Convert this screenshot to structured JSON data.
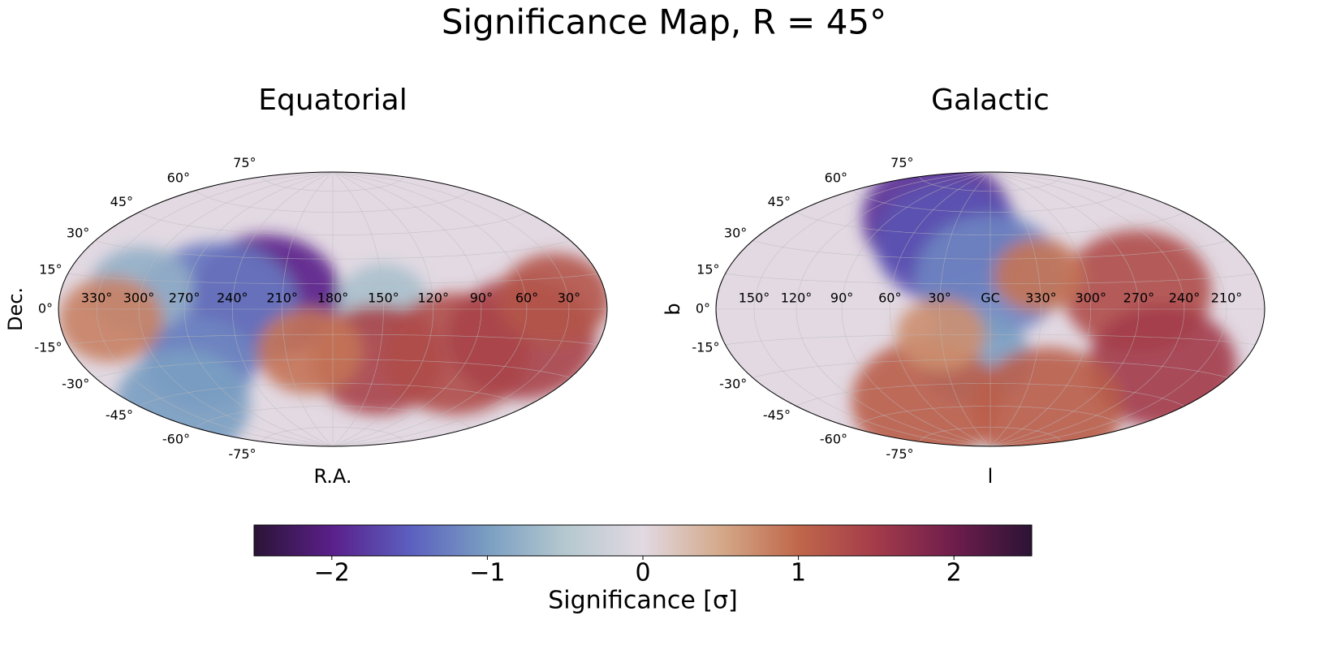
{
  "title": "Significance Map, R = 45°",
  "chart_data": [
    {
      "type": "skymap",
      "title": "Equatorial",
      "xlabel": "R.A.",
      "ylabel": "Dec.",
      "lon_center": 180,
      "xticks": [
        {
          "value": 330,
          "label": "330°"
        },
        {
          "value": 300,
          "label": "300°"
        },
        {
          "value": 270,
          "label": "270°"
        },
        {
          "value": 240,
          "label": "240°"
        },
        {
          "value": 210,
          "label": "210°"
        },
        {
          "value": 180,
          "label": "180°"
        },
        {
          "value": 150,
          "label": "150°"
        },
        {
          "value": 120,
          "label": "120°"
        },
        {
          "value": 90,
          "label": "90°"
        },
        {
          "value": 60,
          "label": "60°"
        },
        {
          "value": 30,
          "label": "30°"
        }
      ],
      "yticks": [
        {
          "value": 75,
          "label": "75°"
        },
        {
          "value": 60,
          "label": "60°"
        },
        {
          "value": 45,
          "label": "45°"
        },
        {
          "value": 30,
          "label": "30°"
        },
        {
          "value": 15,
          "label": "15°"
        },
        {
          "value": 0,
          "label": "0°"
        },
        {
          "value": -15,
          "label": "-15°"
        },
        {
          "value": -30,
          "label": "-30°"
        },
        {
          "value": -45,
          "label": "-45°"
        },
        {
          "value": -60,
          "label": "-60°"
        },
        {
          "value": -75,
          "label": "-75°"
        }
      ],
      "blobs": [
        {
          "lon": 220,
          "lat": 8,
          "r": 20,
          "value": -2.0
        },
        {
          "lon": 250,
          "lat": 0,
          "r": 22,
          "value": -1.3
        },
        {
          "lon": 270,
          "lat": -30,
          "r": 15,
          "value": -1.2
        },
        {
          "lon": 320,
          "lat": -50,
          "r": 18,
          "value": -1.0
        },
        {
          "lon": 300,
          "lat": 10,
          "r": 14,
          "value": -0.8
        },
        {
          "lon": 150,
          "lat": 5,
          "r": 12,
          "value": -0.6
        },
        {
          "lon": 150,
          "lat": -30,
          "r": 18,
          "value": 1.4
        },
        {
          "lon": 100,
          "lat": -25,
          "r": 20,
          "value": 1.3
        },
        {
          "lon": 60,
          "lat": -15,
          "r": 20,
          "value": 1.4
        },
        {
          "lon": 40,
          "lat": 5,
          "r": 15,
          "value": 1.2
        },
        {
          "lon": 320,
          "lat": -5,
          "r": 14,
          "value": 0.8
        },
        {
          "lon": 195,
          "lat": -25,
          "r": 14,
          "value": 0.9
        }
      ]
    },
    {
      "type": "skymap",
      "title": "Galactic",
      "xlabel": "l",
      "ylabel": "b",
      "lon_center": 0,
      "xticks": [
        {
          "value": 150,
          "label": "150°"
        },
        {
          "value": 120,
          "label": "120°"
        },
        {
          "value": 90,
          "label": "90°"
        },
        {
          "value": 60,
          "label": "60°"
        },
        {
          "value": 30,
          "label": "30°"
        },
        {
          "value": 0,
          "label": "GC"
        },
        {
          "value": 330,
          "label": "330°"
        },
        {
          "value": 300,
          "label": "300°"
        },
        {
          "value": 270,
          "label": "270°"
        },
        {
          "value": 240,
          "label": "240°"
        },
        {
          "value": 210,
          "label": "210°"
        }
      ],
      "yticks": [
        {
          "value": 75,
          "label": "75°"
        },
        {
          "value": 60,
          "label": "60°"
        },
        {
          "value": 45,
          "label": "45°"
        },
        {
          "value": 30,
          "label": "30°"
        },
        {
          "value": 15,
          "label": "15°"
        },
        {
          "value": 0,
          "label": "0°"
        },
        {
          "value": -15,
          "label": "-15°"
        },
        {
          "value": -30,
          "label": "-30°"
        },
        {
          "value": -45,
          "label": "-45°"
        },
        {
          "value": -60,
          "label": "-60°"
        },
        {
          "value": -75,
          "label": "-75°"
        }
      ],
      "blobs": [
        {
          "lon": 50,
          "lat": 55,
          "r": 20,
          "value": -1.9
        },
        {
          "lon": 30,
          "lat": 40,
          "r": 20,
          "value": -1.6
        },
        {
          "lon": 0,
          "lat": 20,
          "r": 20,
          "value": -1.2
        },
        {
          "lon": 10,
          "lat": -30,
          "r": 15,
          "value": -1.0
        },
        {
          "lon": 270,
          "lat": 10,
          "r": 20,
          "value": 1.3
        },
        {
          "lon": 240,
          "lat": -30,
          "r": 20,
          "value": 1.5
        },
        {
          "lon": 60,
          "lat": -55,
          "r": 20,
          "value": 1.1
        },
        {
          "lon": 300,
          "lat": -60,
          "r": 20,
          "value": 1.1
        },
        {
          "lon": 330,
          "lat": 20,
          "r": 12,
          "value": 0.9
        },
        {
          "lon": 30,
          "lat": -15,
          "r": 12,
          "value": 0.7
        }
      ]
    }
  ],
  "colorbar": {
    "label": "Significance [σ]",
    "lim": [
      -2.5,
      2.5
    ],
    "ticks": [
      {
        "value": -2,
        "label": "−2"
      },
      {
        "value": -1,
        "label": "−1"
      },
      0,
      1,
      2
    ],
    "colors": [
      "#2b1436",
      "#5a1f8a",
      "#5b5fbf",
      "#7a9ec2",
      "#b5c8cf",
      "#e2d9e2",
      "#d4a98a",
      "#c0674a",
      "#a33b4a",
      "#6e1d4c",
      "#2b1335"
    ]
  }
}
